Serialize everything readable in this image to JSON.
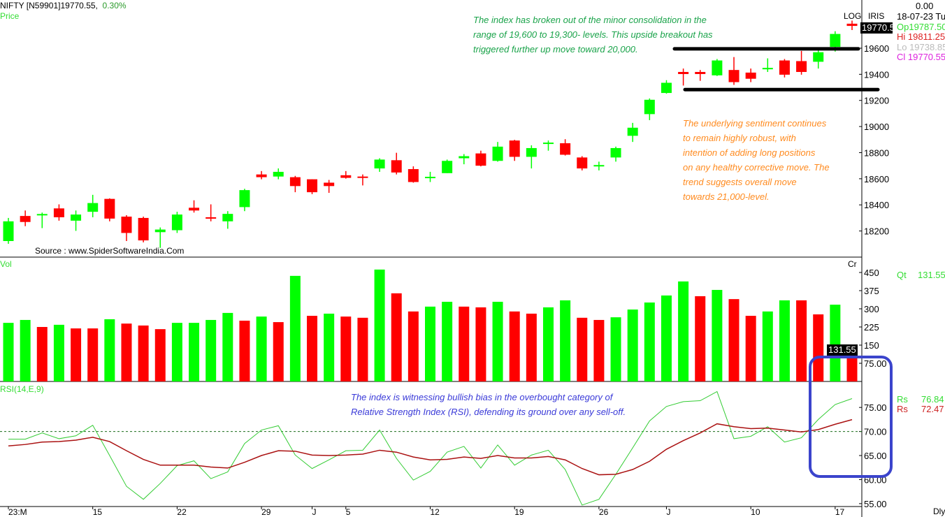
{
  "header": {
    "symbol": "NIFTY [N59901]19770.55,",
    "change": "0.30%",
    "panel_label": "Price",
    "log_label": "LOG",
    "iris_label": "IRIS"
  },
  "info_panel": {
    "value": "0.00",
    "date": "18-07-23 Tu",
    "open": "Op19787.50",
    "high": "Hi  19811.25",
    "low": "Lo  19738.85",
    "close": "Cl  19770.55",
    "price_box": "19770.5"
  },
  "volume_panel": {
    "label": "Vol",
    "unit": "Cr",
    "qt_label": "Qt",
    "qt_value": "131.55",
    "value_box": "131.55"
  },
  "rsi_panel": {
    "label": "RSI(14,E,9)",
    "rs1_label": "Rs",
    "rs1_value": "76.84",
    "rs2_label": "Rs",
    "rs2_value": "72.47"
  },
  "footer": {
    "period": "Dly"
  },
  "source": "Source : www.SpiderSoftwareIndia.Com",
  "annotations": {
    "green": [
      "The index has broken out of the minor consolidation in the",
      "range of 19,600 to 19,300- levels. This upside breakout has",
      "triggered further up move toward 20,000."
    ],
    "orange": [
      "The underlying sentiment continues",
      "to remain highly robust, with",
      "intention of adding long positions",
      "on any healthy corrective move. The",
      "trend suggests overall move",
      "towards 21,000-level."
    ],
    "blue": [
      "The index is witnessing bullish bias in the overbought category of",
      "Relative Strength Index (RSI), defending its ground over any sell-off."
    ]
  },
  "colors": {
    "up": "#00ff00",
    "down": "#ff0000",
    "rsi": "#33cc33",
    "signal": "#aa1111",
    "green_text": "#1aa34a",
    "orange_text": "#ff8a1e",
    "blue_text": "#3a3ad8",
    "highlight_rect": "#3b44cc"
  },
  "chart_data": [
    {
      "type": "candlestick",
      "ylim": [
        18000,
        19969
      ],
      "y_ticks": [
        18200,
        18400,
        18600,
        18800,
        19000,
        19200,
        19400,
        19600
      ],
      "horizontal_levels": [
        19595,
        19283
      ],
      "x_ticks": [
        {
          "label": "23:M",
          "index": 0
        },
        {
          "label": "15",
          "index": 5
        },
        {
          "label": "22",
          "index": 10
        },
        {
          "label": "29",
          "index": 15
        },
        {
          "label": "J",
          "index": 18
        },
        {
          "label": "5",
          "index": 20
        },
        {
          "label": "12",
          "index": 25
        },
        {
          "label": "19",
          "index": 30
        },
        {
          "label": "26",
          "index": 35
        },
        {
          "label": "J",
          "index": 39
        },
        {
          "label": "10",
          "index": 44
        },
        {
          "label": "17",
          "index": 49
        }
      ],
      "ohlc": [
        [
          18123,
          18300,
          18102,
          18274
        ],
        [
          18315,
          18357,
          18237,
          18269
        ],
        [
          18326,
          18341,
          18222,
          18330
        ],
        [
          18373,
          18404,
          18279,
          18305
        ],
        [
          18279,
          18357,
          18201,
          18326
        ],
        [
          18347,
          18477,
          18305,
          18414
        ],
        [
          18446,
          18450,
          18274,
          18295
        ],
        [
          18310,
          18321,
          18123,
          18185
        ],
        [
          18300,
          18310,
          18113,
          18128
        ],
        [
          18191,
          18227,
          18071,
          18211
        ],
        [
          18206,
          18347,
          18185,
          18326
        ],
        [
          18378,
          18435,
          18341,
          18357
        ],
        [
          18305,
          18404,
          18274,
          18295
        ],
        [
          18274,
          18352,
          18217,
          18331
        ],
        [
          18383,
          18523,
          18352,
          18513
        ],
        [
          18633,
          18659,
          18596,
          18612
        ],
        [
          18617,
          18679,
          18596,
          18653
        ],
        [
          18612,
          18622,
          18497,
          18544
        ],
        [
          18596,
          18596,
          18482,
          18497
        ],
        [
          18570,
          18591,
          18492,
          18544
        ],
        [
          18627,
          18659,
          18601,
          18607
        ],
        [
          18617,
          18633,
          18549,
          18612
        ],
        [
          18679,
          18757,
          18653,
          18747
        ],
        [
          18742,
          18799,
          18633,
          18648
        ],
        [
          18674,
          18695,
          18570,
          18575
        ],
        [
          18610,
          18653,
          18575,
          18615
        ],
        [
          18643,
          18747,
          18643,
          18737
        ],
        [
          18757,
          18789,
          18711,
          18773
        ],
        [
          18794,
          18815,
          18695,
          18700
        ],
        [
          18737,
          18882,
          18731,
          18846
        ],
        [
          18893,
          18898,
          18737,
          18768
        ],
        [
          18768,
          18856,
          18679,
          18835
        ],
        [
          18867,
          18893,
          18815,
          18877
        ],
        [
          18872,
          18903,
          18778,
          18784
        ],
        [
          18763,
          18773,
          18664,
          18679
        ],
        [
          18700,
          18731,
          18664,
          18705
        ],
        [
          18763,
          18846,
          18731,
          18835
        ],
        [
          18929,
          19028,
          18882,
          18991
        ],
        [
          19095,
          19215,
          19049,
          19205
        ],
        [
          19257,
          19355,
          19252,
          19335
        ],
        [
          19418,
          19444,
          19314,
          19402
        ],
        [
          19418,
          19433,
          19350,
          19402
        ],
        [
          19392,
          19517,
          19387,
          19506
        ],
        [
          19433,
          19532,
          19319,
          19340
        ],
        [
          19413,
          19444,
          19340,
          19366
        ],
        [
          19439,
          19522,
          19418,
          19449
        ],
        [
          19506,
          19517,
          19376,
          19397
        ],
        [
          19501,
          19579,
          19397,
          19418
        ],
        [
          19496,
          19595,
          19444,
          19569
        ],
        [
          19610,
          19730,
          19574,
          19709
        ],
        [
          19787.5,
          19811.25,
          19738.85,
          19770.55
        ]
      ]
    },
    {
      "type": "bar",
      "ylim": [
        0,
        540
      ],
      "y_ticks": [
        "75.00",
        "150",
        "225",
        "300",
        "375",
        "450"
      ],
      "values": [
        242,
        254,
        225,
        234,
        219,
        219,
        257,
        239,
        231,
        216,
        242,
        242,
        254,
        283,
        251,
        268,
        245,
        436,
        271,
        280,
        268,
        263,
        462,
        364,
        289,
        309,
        329,
        309,
        306,
        329,
        289,
        280,
        306,
        335,
        263,
        254,
        265,
        297,
        326,
        355,
        413,
        352,
        378,
        340,
        271,
        289,
        335,
        335,
        277,
        317,
        131.55
      ],
      "directions": [
        "up",
        "up",
        "down",
        "up",
        "down",
        "down",
        "up",
        "down",
        "down",
        "down",
        "up",
        "up",
        "up",
        "up",
        "down",
        "up",
        "down",
        "up",
        "down",
        "up",
        "down",
        "down",
        "up",
        "down",
        "down",
        "up",
        "up",
        "down",
        "down",
        "up",
        "down",
        "down",
        "up",
        "up",
        "down",
        "down",
        "up",
        "up",
        "up",
        "up",
        "up",
        "down",
        "up",
        "down",
        "down",
        "up",
        "up",
        "down",
        "down",
        "up",
        "down"
      ]
    },
    {
      "type": "line",
      "ylim": [
        54.4,
        80.4
      ],
      "y_ticks": [
        "55.00",
        "60.00",
        "65.00",
        "70.00",
        "75.00"
      ],
      "reference_line": 70,
      "series": [
        {
          "values": [
            68.4,
            68.4,
            69.7,
            68.5,
            69.1,
            71.3,
            65.0,
            58.6,
            55.9,
            59.2,
            62.9,
            63.9,
            60.2,
            61.6,
            67.5,
            70.3,
            71.2,
            65.1,
            62.3,
            64.1,
            66.0,
            66.1,
            70.3,
            64.4,
            59.9,
            61.7,
            65.7,
            66.9,
            62.4,
            67.2,
            63.0,
            65.1,
            66.1,
            62.1,
            54.7,
            55.9,
            61.1,
            66.6,
            72.2,
            75.2,
            76.2,
            76.4,
            78.3,
            68.5,
            69.0,
            71.0,
            67.8,
            68.7,
            72.5,
            75.6,
            76.84
          ]
        },
        {
          "values": [
            67.0,
            67.3,
            67.8,
            67.9,
            68.2,
            68.8,
            67.9,
            66.0,
            64.2,
            63.0,
            63.0,
            63.0,
            62.6,
            62.4,
            63.6,
            65.0,
            66.0,
            65.9,
            65.1,
            65.0,
            65.1,
            65.3,
            66.1,
            65.7,
            64.7,
            64.1,
            64.2,
            64.7,
            64.4,
            65.0,
            64.5,
            64.5,
            64.8,
            64.1,
            62.3,
            61.0,
            61.1,
            62.1,
            63.8,
            66.3,
            68.1,
            69.7,
            71.6,
            71.0,
            70.6,
            70.7,
            70.3,
            69.9,
            70.4,
            71.5,
            72.47
          ]
        }
      ]
    }
  ]
}
